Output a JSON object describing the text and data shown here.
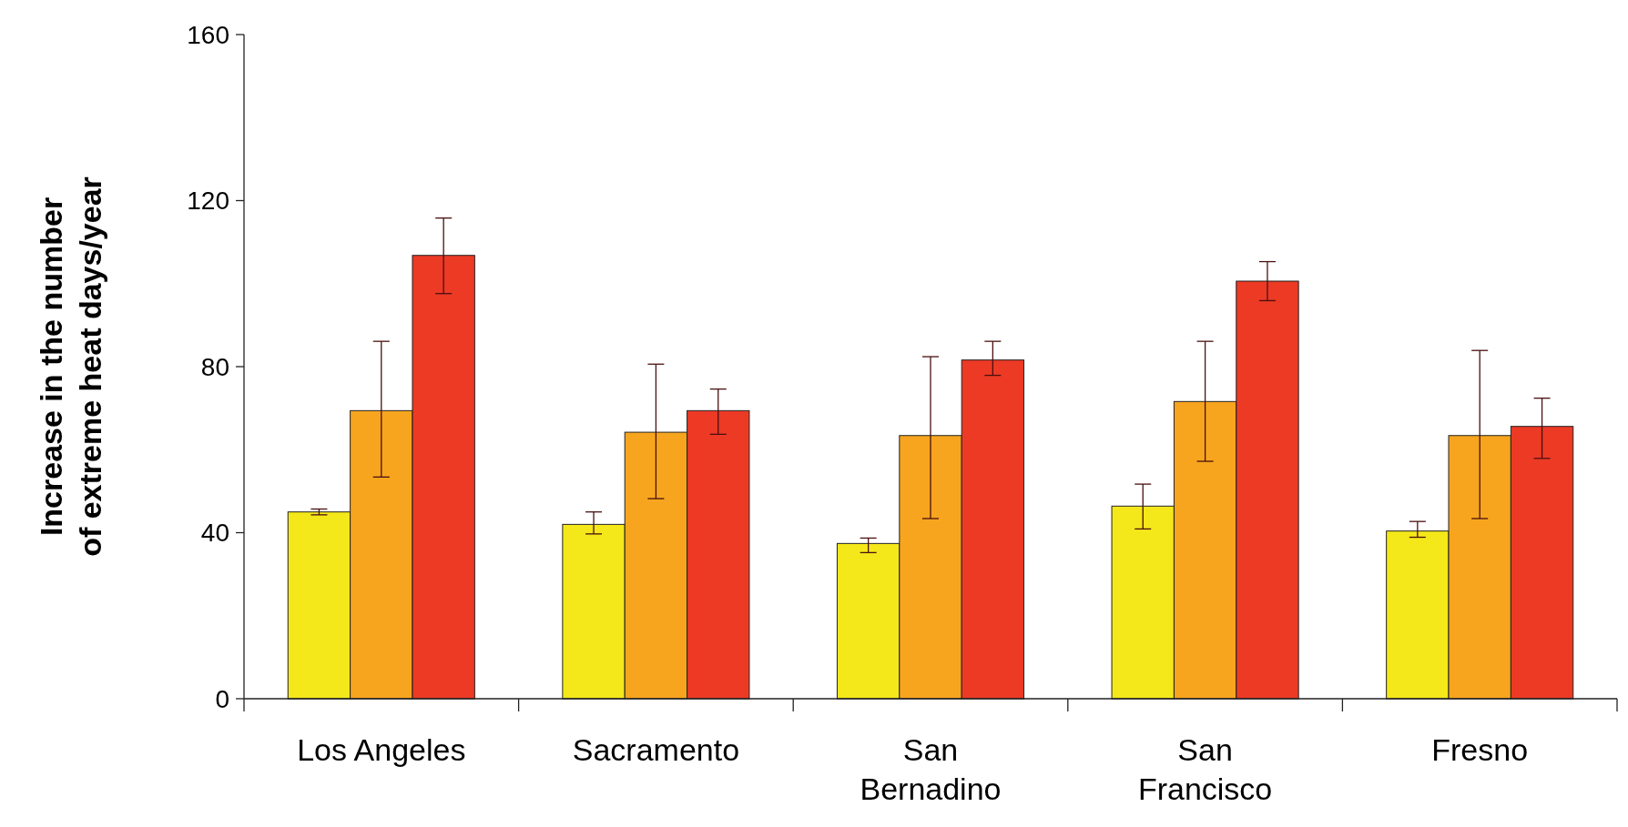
{
  "chart_data": {
    "type": "bar",
    "ylabel": "Increase in the number\nof extreme heat days/year",
    "categories": [
      "Los Angeles",
      "Sacramento",
      "San Bernadino",
      "San Francisco",
      "Fresno"
    ],
    "series": [
      {
        "color": "#f5e81a",
        "values": [
          45,
          42,
          37.4,
          46.4,
          40.4
        ],
        "errors": [
          [
            44.3,
            45.7
          ],
          [
            39.7,
            45
          ],
          [
            35.2,
            38.7
          ],
          [
            40.9,
            51.7
          ],
          [
            38.9,
            42.7
          ]
        ]
      },
      {
        "color": "#f7a51e",
        "values": [
          69.4,
          64.2,
          63.4,
          71.6,
          63.4
        ],
        "errors": [
          [
            53.4,
            86.1
          ],
          [
            48.2,
            80.6
          ],
          [
            43.4,
            82.4
          ],
          [
            57.2,
            86.1
          ],
          [
            43.4,
            83.9
          ]
        ]
      },
      {
        "color": "#ec3a25",
        "values": [
          106.8,
          69.4,
          81.6,
          100.6,
          65.6
        ],
        "errors": [
          [
            97.6,
            115.8
          ],
          [
            63.7,
            74.6
          ],
          [
            77.9,
            86.1
          ],
          [
            95.9,
            105.3
          ],
          [
            57.9,
            72.4
          ]
        ]
      }
    ],
    "ylim": [
      0,
      160
    ],
    "yticks": [
      0,
      40,
      80,
      120,
      160
    ],
    "grid": false
  }
}
